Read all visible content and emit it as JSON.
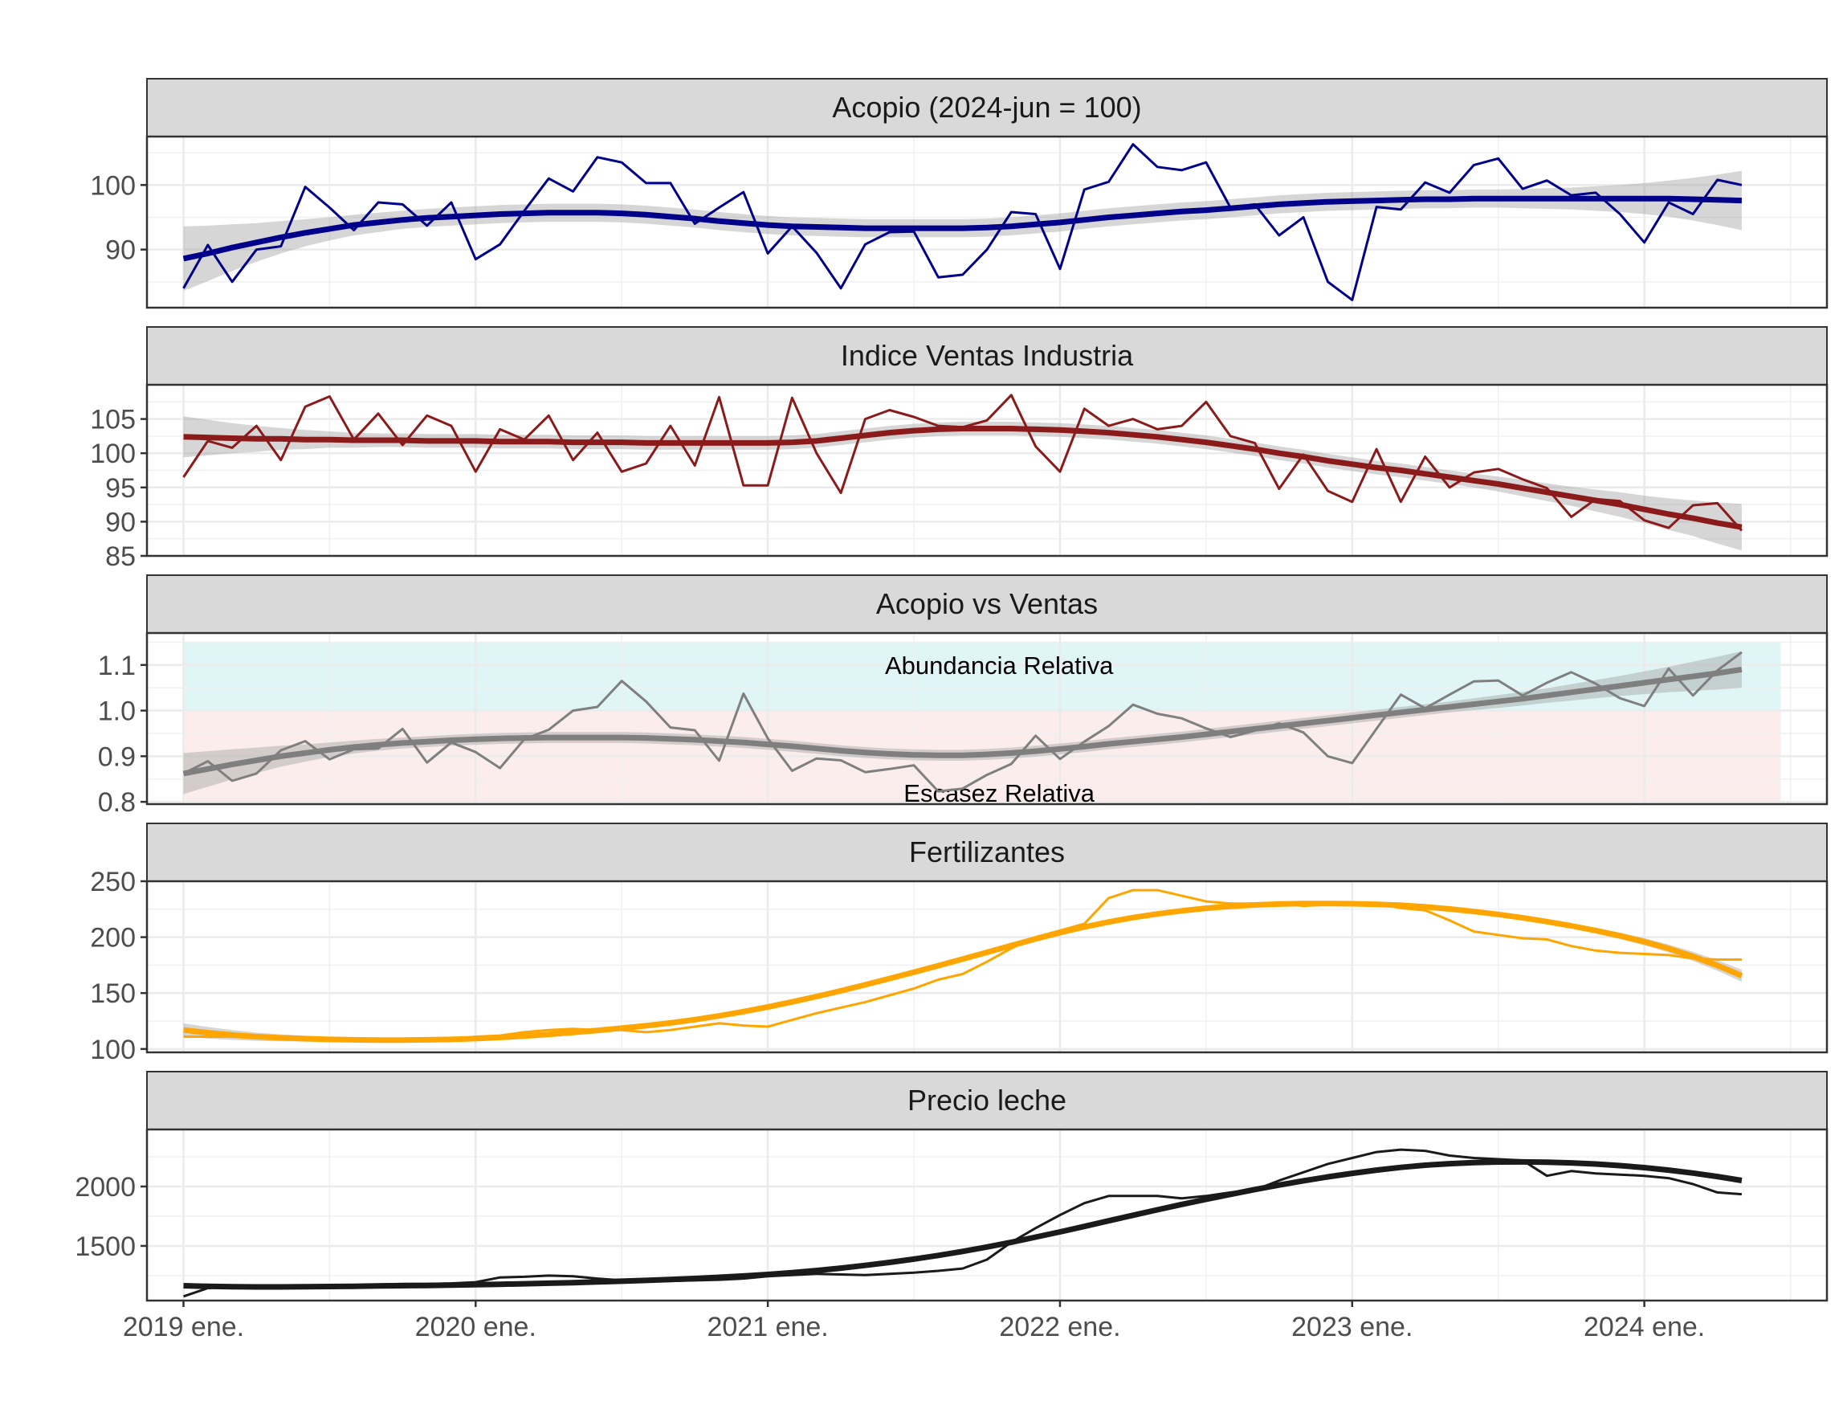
{
  "chart_data": {
    "type": "line",
    "x_tick_labels": [
      "2019 ene.",
      "2020 ene.",
      "2021 ene.",
      "2022 ene.",
      "2023 ene.",
      "2024 ene."
    ],
    "x_start": "2019-01",
    "x_months": 66,
    "x_range_months": [
      -1.5,
      67.5
    ],
    "smoother": "loess with confidence band (grey ribbon)",
    "panels": [
      {
        "title": "Acopio (2024-jun = 100)",
        "color": "#00008B",
        "ylim": [
          81,
          107.5
        ],
        "yticks": [
          90,
          100
        ],
        "ytick_labels": [
          "90",
          "100"
        ],
        "values": [
          84,
          90.7,
          85,
          90,
          90.5,
          99.7,
          96.5,
          93,
          97.3,
          97,
          93.7,
          97.3,
          88.5,
          90.8,
          96,
          101,
          99,
          104.3,
          103.5,
          100.3,
          100.3,
          94,
          96.5,
          98.9,
          89.4,
          93.6,
          89.5,
          84,
          90.8,
          92.7,
          92.8,
          85.7,
          86.1,
          90,
          95.8,
          95.5,
          87,
          99.3,
          100.5,
          106.3,
          102.8,
          102.3,
          103.5,
          96.5,
          97,
          92.2,
          95,
          85,
          82.2,
          96.6,
          96.2,
          100.4,
          98.8,
          103.1,
          104.1,
          99.4,
          100.7,
          98.4,
          98.8,
          95.5,
          91.1,
          97.3,
          95.5,
          100.8,
          100
        ],
        "trend": [
          88.6,
          89.4,
          90.3,
          91.1,
          91.9,
          92.6,
          93.2,
          93.8,
          94.2,
          94.6,
          94.9,
          95.1,
          95.3,
          95.5,
          95.6,
          95.7,
          95.7,
          95.7,
          95.6,
          95.4,
          95.1,
          94.8,
          94.4,
          94.1,
          93.8,
          93.6,
          93.5,
          93.4,
          93.3,
          93.3,
          93.3,
          93.3,
          93.3,
          93.4,
          93.6,
          93.9,
          94.2,
          94.6,
          95,
          95.3,
          95.6,
          95.9,
          96.1,
          96.4,
          96.7,
          97,
          97.2,
          97.4,
          97.5,
          97.6,
          97.7,
          97.8,
          97.8,
          97.9,
          97.9,
          97.9,
          97.9,
          97.9,
          97.9,
          97.9,
          97.9,
          97.9,
          97.8,
          97.7,
          97.6
        ],
        "band": [
          5,
          4.3,
          3.6,
          3,
          2.5,
          2.1,
          1.8,
          1.6,
          1.5,
          1.4,
          1.4,
          1.4,
          1.4,
          1.4,
          1.4,
          1.4,
          1.4,
          1.4,
          1.4,
          1.4,
          1.4,
          1.4,
          1.4,
          1.4,
          1.4,
          1.4,
          1.4,
          1.4,
          1.4,
          1.4,
          1.4,
          1.4,
          1.4,
          1.4,
          1.4,
          1.4,
          1.4,
          1.4,
          1.4,
          1.4,
          1.4,
          1.4,
          1.4,
          1.4,
          1.4,
          1.4,
          1.4,
          1.4,
          1.4,
          1.4,
          1.4,
          1.4,
          1.4,
          1.4,
          1.4,
          1.5,
          1.6,
          1.7,
          1.9,
          2.1,
          2.4,
          2.8,
          3.3,
          3.9,
          4.6
        ]
      },
      {
        "title": "Indice Ventas Industria",
        "color": "#8B1A1A",
        "ylim": [
          85,
          110
        ],
        "yticks": [
          85,
          90,
          95,
          100,
          105
        ],
        "ytick_labels": [
          "85",
          "90",
          "95",
          "100",
          "105"
        ],
        "values": [
          96.5,
          101.8,
          100.8,
          104,
          99,
          106.8,
          108.3,
          102,
          105.8,
          101.2,
          105.5,
          104,
          97.3,
          103.5,
          102,
          105.5,
          99,
          103,
          97.3,
          98.5,
          104,
          98.2,
          108.2,
          95.3,
          95.3,
          108.1,
          100,
          94.2,
          105,
          106.3,
          105.3,
          104,
          103.8,
          104.8,
          108.5,
          101,
          97.3,
          106.5,
          104,
          105,
          103.5,
          104,
          107.5,
          102.5,
          101.5,
          94.8,
          99.8,
          94.5,
          92.9,
          100.6,
          92.9,
          99.5,
          95,
          97.2,
          97.7,
          96.2,
          94.9,
          90.7,
          93.3,
          93,
          90.2,
          89.1,
          92.4,
          92.7,
          88.7
        ],
        "trend": [
          102.4,
          102.3,
          102.2,
          102.1,
          102.1,
          102,
          102,
          101.9,
          101.9,
          101.9,
          101.8,
          101.8,
          101.8,
          101.7,
          101.7,
          101.7,
          101.6,
          101.6,
          101.6,
          101.5,
          101.5,
          101.5,
          101.5,
          101.5,
          101.5,
          101.6,
          101.8,
          102.2,
          102.6,
          103,
          103.3,
          103.5,
          103.6,
          103.6,
          103.6,
          103.5,
          103.4,
          103.2,
          103,
          102.7,
          102.4,
          102,
          101.6,
          101.1,
          100.6,
          100,
          99.5,
          98.9,
          98.4,
          97.9,
          97.5,
          97,
          96.5,
          96,
          95.5,
          94.9,
          94.3,
          93.7,
          93.1,
          92.5,
          91.8,
          91.1,
          90.5,
          89.8,
          89.2
        ],
        "band": [
          3,
          2.6,
          2.2,
          1.9,
          1.6,
          1.4,
          1.2,
          1.1,
          1,
          1,
          1,
          1,
          1,
          1,
          1,
          1,
          1,
          1,
          1,
          1,
          1,
          1,
          1,
          1,
          1,
          1,
          1,
          1,
          1,
          1,
          1,
          1,
          1,
          1,
          1,
          1,
          1,
          1,
          1,
          1,
          1,
          1,
          1,
          1,
          1,
          1,
          1,
          1,
          1,
          1,
          1,
          1,
          1,
          1,
          1.1,
          1.2,
          1.3,
          1.4,
          1.6,
          1.8,
          2,
          2.3,
          2.6,
          3,
          3.4
        ]
      },
      {
        "title": "Acopio vs Ventas",
        "color": "#7F7F7F",
        "ylim": [
          0.795,
          1.17
        ],
        "yticks": [
          0.8,
          0.9,
          1.0,
          1.1
        ],
        "ytick_labels": [
          "0.8",
          "0.9",
          "1.0",
          "1.1"
        ],
        "zones": [
          {
            "label": "Abundancia Relativa",
            "from": 1.0,
            "to": 1.15,
            "color": "#E0F5F5"
          },
          {
            "label": "Escasez Relativa",
            "from": 0.8,
            "to": 1.0,
            "color": "#FCEDED"
          }
        ],
        "values": [
          0.862,
          0.889,
          0.846,
          0.862,
          0.913,
          0.933,
          0.893,
          0.915,
          0.917,
          0.96,
          0.886,
          0.93,
          0.909,
          0.874,
          0.937,
          0.958,
          1,
          1.008,
          1.065,
          1.02,
          0.963,
          0.957,
          0.89,
          1.037,
          0.939,
          0.868,
          0.895,
          0.891,
          0.865,
          0.872,
          0.88,
          0.823,
          0.829,
          0.859,
          0.883,
          0.945,
          0.894,
          0.932,
          0.966,
          1.013,
          0.993,
          0.983,
          0.961,
          0.942,
          0.956,
          0.972,
          0.952,
          0.9,
          0.885,
          0.96,
          1.035,
          1.005,
          1.035,
          1.064,
          1.066,
          1.033,
          1.061,
          1.084,
          1.059,
          1.027,
          1.01,
          1.092,
          1.033,
          1.088,
          1.128
        ],
        "trend": [
          0.862,
          0.872,
          0.882,
          0.891,
          0.9,
          0.907,
          0.914,
          0.92,
          0.925,
          0.929,
          0.932,
          0.935,
          0.937,
          0.939,
          0.94,
          0.941,
          0.941,
          0.941,
          0.941,
          0.94,
          0.938,
          0.936,
          0.933,
          0.93,
          0.926,
          0.922,
          0.917,
          0.912,
          0.908,
          0.905,
          0.903,
          0.902,
          0.902,
          0.904,
          0.907,
          0.911,
          0.916,
          0.921,
          0.927,
          0.932,
          0.937,
          0.942,
          0.948,
          0.954,
          0.96,
          0.966,
          0.972,
          0.978,
          0.984,
          0.99,
          0.996,
          1.002,
          1.008,
          1.014,
          1.02,
          1.026,
          1.033,
          1.04,
          1.047,
          1.054,
          1.061,
          1.068,
          1.075,
          1.082,
          1.09
        ],
        "band": [
          0.045,
          0.039,
          0.033,
          0.028,
          0.023,
          0.019,
          0.016,
          0.014,
          0.013,
          0.012,
          0.012,
          0.012,
          0.012,
          0.012,
          0.012,
          0.012,
          0.012,
          0.012,
          0.012,
          0.012,
          0.012,
          0.012,
          0.012,
          0.012,
          0.012,
          0.012,
          0.012,
          0.012,
          0.012,
          0.012,
          0.012,
          0.012,
          0.012,
          0.012,
          0.012,
          0.012,
          0.012,
          0.012,
          0.012,
          0.012,
          0.012,
          0.012,
          0.012,
          0.012,
          0.012,
          0.012,
          0.012,
          0.012,
          0.012,
          0.012,
          0.012,
          0.012,
          0.012,
          0.013,
          0.014,
          0.015,
          0.016,
          0.018,
          0.02,
          0.022,
          0.025,
          0.028,
          0.032,
          0.036,
          0.04
        ]
      },
      {
        "title": "Fertilizantes",
        "color": "#FFA500",
        "ylim": [
          97,
          250
        ],
        "yticks": [
          100,
          150,
          200,
          250
        ],
        "ytick_labels": [
          "100",
          "150",
          "200",
          "250"
        ],
        "values": [
          111,
          111,
          111,
          110,
          109,
          108,
          108,
          108,
          108,
          108,
          108,
          109,
          111,
          112,
          115,
          117,
          118,
          117,
          117,
          115,
          117,
          120,
          123,
          121,
          120,
          126,
          132,
          137,
          142,
          148,
          154,
          162,
          167,
          178,
          190,
          200,
          206,
          212,
          235,
          242,
          242,
          237,
          232,
          230,
          230,
          230,
          228,
          229,
          230,
          230,
          226,
          224,
          215,
          205,
          202,
          199,
          198,
          192,
          188,
          186,
          185,
          184,
          181,
          180,
          180
        ],
        "trend": [
          117,
          114.5,
          112.5,
          111,
          110,
          109.2,
          108.6,
          108.2,
          108,
          108,
          108.2,
          108.6,
          109.3,
          110.3,
          111.6,
          113.1,
          114.8,
          116.6,
          118.6,
          120.8,
          123.3,
          126.2,
          129.6,
          133.4,
          137.6,
          142.1,
          146.9,
          152,
          157.4,
          163,
          168.7,
          174.5,
          180.4,
          186.4,
          192.5,
          198.4,
          204,
          209.1,
          213.6,
          217.5,
          220.8,
          223.6,
          225.9,
          227.6,
          228.8,
          229.6,
          230,
          230.1,
          229.9,
          229.4,
          228.5,
          227.1,
          225.2,
          222.9,
          220.3,
          217.3,
          213.9,
          210.1,
          205.9,
          201.2,
          195.9,
          189.8,
          182.8,
          174.7,
          165.5
        ],
        "band": [
          6,
          5.2,
          4.4,
          3.7,
          3.1,
          2.7,
          2.4,
          2.2,
          2.1,
          2,
          2,
          2,
          2,
          2,
          2,
          2,
          2,
          2,
          2,
          2,
          2,
          2,
          2,
          2,
          2,
          2,
          2,
          2,
          2,
          2,
          2,
          2,
          2,
          2,
          2,
          2,
          2,
          2,
          2,
          2,
          2,
          2,
          2,
          2,
          2,
          2,
          2,
          2,
          2,
          2,
          2,
          2,
          2,
          2,
          2,
          2.1,
          2.2,
          2.4,
          2.6,
          2.9,
          3.2,
          3.6,
          4.1,
          4.7,
          5.4
        ]
      },
      {
        "title": "Precio leche",
        "color": "#1A1A1A",
        "ylim": [
          1040,
          2480
        ],
        "yticks": [
          1500,
          2000
        ],
        "ytick_labels": [
          "1500",
          "2000"
        ],
        "values": [
          1075,
          1145,
          1160,
          1165,
          1160,
          1155,
          1160,
          1165,
          1175,
          1180,
          1180,
          1185,
          1195,
          1235,
          1240,
          1250,
          1245,
          1225,
          1210,
          1205,
          1205,
          1210,
          1215,
          1225,
          1245,
          1255,
          1265,
          1260,
          1255,
          1265,
          1275,
          1290,
          1310,
          1385,
          1530,
          1650,
          1760,
          1860,
          1920,
          1920,
          1920,
          1900,
          1920,
          1950,
          1970,
          2050,
          2120,
          2190,
          2240,
          2290,
          2310,
          2300,
          2260,
          2240,
          2230,
          2220,
          2090,
          2130,
          2110,
          2100,
          2090,
          2070,
          2020,
          1950,
          1935
        ],
        "trend": [
          1165,
          1160,
          1157,
          1155,
          1155,
          1156,
          1158,
          1160,
          1163,
          1165,
          1167,
          1170,
          1173,
          1177,
          1181,
          1186,
          1191,
          1197,
          1203,
          1210,
          1217,
          1226,
          1236,
          1247,
          1260,
          1275,
          1293,
          1313,
          1336,
          1361,
          1389,
          1420,
          1454,
          1491,
          1531,
          1574,
          1618,
          1664,
          1711,
          1758,
          1804,
          1849,
          1892,
          1934,
          1974,
          2012,
          2048,
          2081,
          2111,
          2138,
          2161,
          2179,
          2192,
          2201,
          2206,
          2207,
          2205,
          2199,
          2189,
          2176,
          2159,
          2138,
          2113,
          2084,
          2051
        ],
        "band": [
          22,
          19,
          16,
          14,
          12,
          11,
          10,
          10,
          10,
          10,
          10,
          10,
          10,
          10,
          10,
          10,
          10,
          10,
          10,
          10,
          10,
          10,
          10,
          10,
          10,
          10,
          10,
          10,
          10,
          10,
          10,
          10,
          10,
          10,
          10,
          10,
          10,
          10,
          10,
          10,
          10,
          10,
          10,
          10,
          10,
          10,
          10,
          10,
          10,
          10,
          10,
          10,
          10,
          10,
          10,
          10,
          11,
          12,
          13,
          14,
          16,
          18,
          20,
          23,
          26
        ]
      }
    ]
  }
}
